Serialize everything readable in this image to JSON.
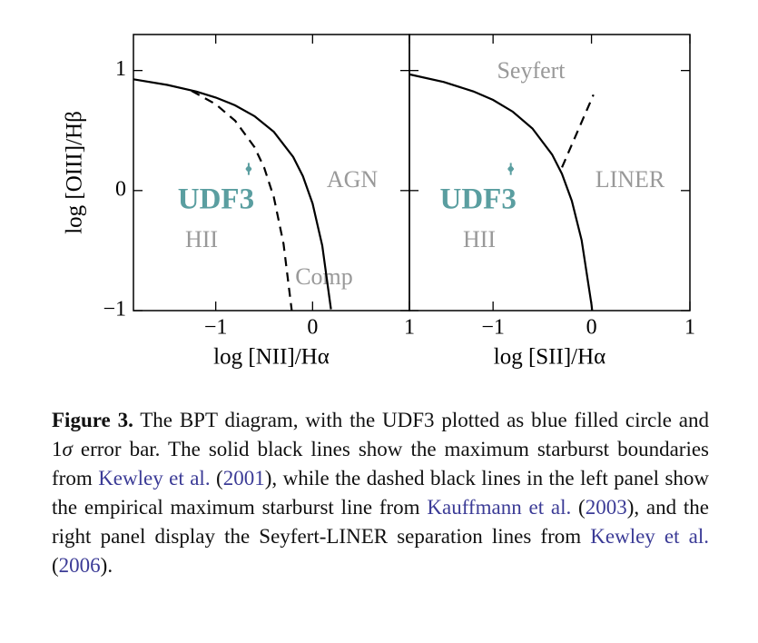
{
  "chart_data": [
    {
      "type": "scatter",
      "xlabel": "log [NII]/Hα",
      "ylabel": "log [OIII]/Hβ",
      "xlim": [
        -1.85,
        1
      ],
      "ylim": [
        -1,
        1.3
      ],
      "xticks": [
        {
          "value": -1,
          "label": "−1"
        },
        0,
        1
      ],
      "yticks": [
        {
          "value": -1,
          "label": "−1"
        },
        0,
        1
      ],
      "point": {
        "name": "UDF3",
        "x": -0.66,
        "y": 0.18,
        "xerr": 0.03,
        "yerr": 0.05,
        "color": "#5a9ea0"
      },
      "lines": [
        {
          "color": "#000000",
          "dashed": false,
          "x": [
            -1.85,
            -1.5,
            -1.2,
            -1.0,
            -0.8,
            -0.6,
            -0.4,
            -0.2,
            -0.1,
            0.0,
            0.1,
            0.19
          ],
          "y": [
            0.927,
            0.88,
            0.825,
            0.775,
            0.71,
            0.62,
            0.489,
            0.28,
            0.12,
            -0.108,
            -0.459,
            -0.989
          ]
        },
        {
          "color": "#000000",
          "dashed": true,
          "x": [
            -1.25,
            -1.0,
            -0.8,
            -0.6,
            -0.5,
            -0.4,
            -0.3,
            -0.215
          ],
          "y": [
            0.831,
            0.719,
            0.582,
            0.362,
            0.191,
            -0.056,
            -0.443,
            -1.0
          ]
        }
      ],
      "annotations": [
        "AGN",
        "HII",
        "Comp"
      ]
    },
    {
      "type": "scatter",
      "xlabel": "log [SII]/Hα",
      "sharey": true,
      "xlim": [
        -1.85,
        1
      ],
      "ylim": [
        -1,
        1.3
      ],
      "xticks": [
        {
          "value": -1,
          "label": "−1"
        },
        0,
        1
      ],
      "point": {
        "name": "UDF3",
        "x": -0.82,
        "y": 0.18,
        "xerr": 0.03,
        "yerr": 0.05,
        "color": "#5a9ea0"
      },
      "lines": [
        {
          "color": "#000000",
          "dashed": false,
          "x": [
            -1.85,
            -1.5,
            -1.2,
            -1.0,
            -0.8,
            -0.6,
            -0.4,
            -0.3,
            -0.2,
            -0.1,
            0.0,
            0.007
          ],
          "y": [
            0.968,
            0.904,
            0.826,
            0.755,
            0.657,
            0.517,
            0.3,
            0.139,
            -0.085,
            -0.414,
            -0.95,
            -1.0
          ]
        },
        {
          "color": "#000000",
          "dashed": true,
          "x": [
            -0.3,
            0.02
          ],
          "y": [
            0.193,
            0.798
          ]
        }
      ],
      "annotations": [
        "Seyfert",
        "LINER",
        "HII"
      ]
    }
  ],
  "caption": {
    "parts": [
      "Figure 3.",
      "The BPT diagram, with the UDF3 plotted as blue filled circle and 1",
      "σ",
      "error bar. The solid black lines show the maximum starburst boundaries from",
      "Kewley et al.",
      "(",
      "2001",
      "), while the dashed black lines in the left panel show the empirical maximum starburst line from",
      "Kauffmann et al.",
      "(",
      "2003",
      "), and the right panel display the Seyfert-LINER separation lines from",
      "Kewley et al.",
      "(",
      "2006",
      ")."
    ]
  }
}
